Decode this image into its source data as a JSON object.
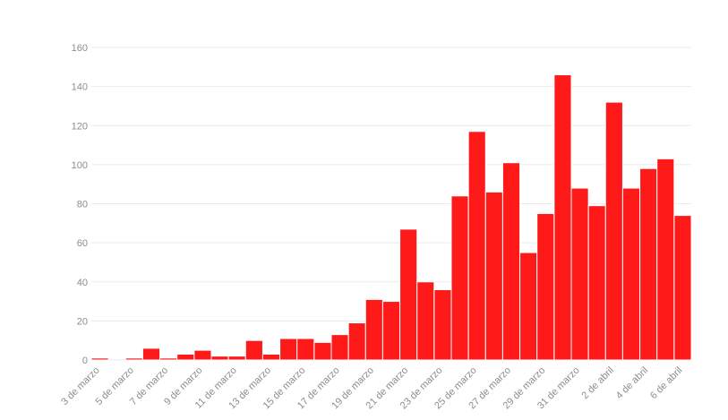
{
  "chart_data": {
    "type": "bar",
    "title": "",
    "xlabel": "",
    "ylabel": "",
    "ylim": [
      0,
      160
    ],
    "yticks": [
      0,
      20,
      40,
      60,
      80,
      100,
      120,
      140,
      160
    ],
    "grid": true,
    "bar_color": "#ff1a1a",
    "categories": [
      "3 de marzo",
      "4 de marzo",
      "5 de marzo",
      "6 de marzo",
      "7 de marzo",
      "8 de marzo",
      "9 de marzo",
      "10 de marzo",
      "11 de marzo",
      "12 de marzo",
      "13 de marzo",
      "14 de marzo",
      "15 de marzo",
      "16 de marzo",
      "17 de marzo",
      "18 de marzo",
      "19 de marzo",
      "20 de marzo",
      "21 de marzo",
      "22 de marzo",
      "23 de marzo",
      "24 de marzo",
      "25 de marzo",
      "26 de marzo",
      "27 de marzo",
      "28 de marzo",
      "29 de marzo",
      "30 de marzo",
      "31 de marzo",
      "1 de abril",
      "2 de abril",
      "3 de abril",
      "4 de abril",
      "5 de abril",
      "6 de abril"
    ],
    "values": [
      1,
      0,
      1,
      6,
      1,
      3,
      5,
      2,
      2,
      10,
      3,
      11,
      11,
      9,
      13,
      19,
      31,
      30,
      67,
      40,
      36,
      84,
      117,
      86,
      101,
      55,
      75,
      146,
      88,
      79,
      132,
      88,
      98,
      103,
      74
    ],
    "xtick_labels": [
      "3 de marzo",
      "5 de marzo",
      "7 de marzo",
      "9 de marzo",
      "11 de marzo",
      "13 de marzo",
      "15 de marzo",
      "17 de marzo",
      "19 de marzo",
      "21 de marzo",
      "23 de marzo",
      "25 de marzo",
      "27 de marzo",
      "29 de marzo",
      "31 de marzo",
      "2 de abril",
      "4 de abril",
      "6 de abril"
    ]
  }
}
